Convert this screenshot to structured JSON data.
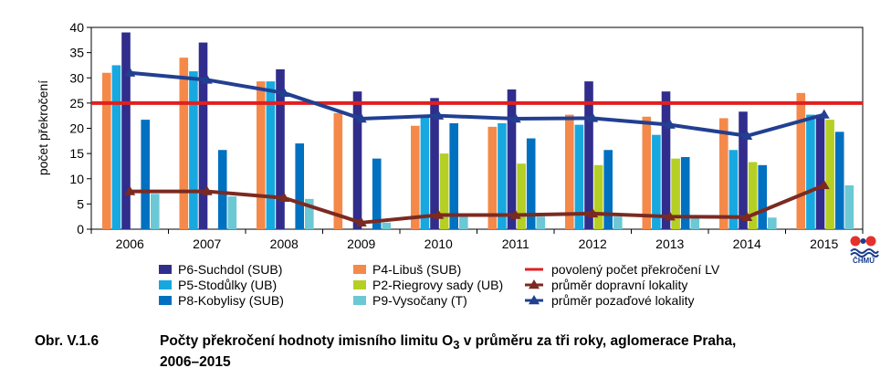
{
  "chart_data": {
    "type": "bar",
    "ylabel": "počet překročení",
    "xlabel": "",
    "ylim": [
      0,
      40
    ],
    "yticks": [
      "0",
      "5",
      "10",
      "15",
      "20",
      "25",
      "30",
      "35",
      "40"
    ],
    "categories": [
      "2006",
      "2007",
      "2008",
      "2009",
      "2010",
      "2011",
      "2012",
      "2013",
      "2014",
      "2015"
    ],
    "series": [
      {
        "name": "P4-Libuš (SUB)",
        "color": "#f4894a",
        "values": [
          31,
          34,
          29.3,
          23,
          20.5,
          20.3,
          22.7,
          22.3,
          22,
          27
        ]
      },
      {
        "name": "P5-Stodůlky (UB)",
        "color": "#17a8e0",
        "values": [
          32.5,
          31.3,
          29.3,
          null,
          22.7,
          21,
          20.7,
          18.7,
          15.7,
          22.7
        ]
      },
      {
        "name": "P6-Suchdol (SUB)",
        "color": "#312d8c",
        "values": [
          39,
          37,
          31.7,
          27.3,
          26,
          27.7,
          29.3,
          27.3,
          23.3,
          22.7
        ]
      },
      {
        "name": "P2-Riegrovy sady (UB)",
        "color": "#b5cf25",
        "values": [
          null,
          null,
          null,
          null,
          15,
          13,
          12.7,
          14,
          13.3,
          21.7
        ]
      },
      {
        "name": "P8-Kobylisy (SUB)",
        "color": "#0070c0",
        "values": [
          21.7,
          15.7,
          17,
          14,
          21,
          18,
          15.7,
          14.3,
          12.7,
          19.3
        ]
      },
      {
        "name": "P9-Vysočany (T)",
        "color": "#6cc8d4",
        "values": [
          7,
          6.5,
          6,
          1.3,
          2.7,
          2.5,
          2.5,
          2.3,
          2.3,
          8.7
        ]
      }
    ],
    "lines": [
      {
        "name": "povolený počet překročení LV",
        "color": "#e02020",
        "values": [
          25,
          25,
          25,
          25,
          25,
          25,
          25,
          25,
          25,
          25
        ],
        "marker": "none"
      },
      {
        "name": "průměr dopravní lokality",
        "color": "#7b2a22",
        "values": [
          7.5,
          7.5,
          6.2,
          1.3,
          2.8,
          2.8,
          3.1,
          2.5,
          2.4,
          8.7
        ],
        "marker": "triangle"
      },
      {
        "name": "průměr pozaďové lokality",
        "color": "#223f91",
        "values": [
          31,
          29.6,
          27,
          21.9,
          22.5,
          21.9,
          22,
          20.7,
          18.5,
          22.7
        ],
        "marker": "triangle"
      }
    ],
    "legend": {
      "placement": "bottom",
      "columns": [
        [
          "P6-Suchdol (SUB)",
          "P5-Stodůlky (UB)",
          "P8-Kobylisy (SUB)"
        ],
        [
          "P4-Libuš (SUB)",
          "P2-Riegrovy sady (UB)",
          "P9-Vysočany (T)"
        ],
        [
          "povolený počet překročení LV",
          "průměr dopravní lokality",
          "průměr pozaďové lokality"
        ]
      ]
    },
    "grid": false
  },
  "caption": {
    "lead": "Obr. V.1.6",
    "text_before_sub": "Počty překročení hodnoty imisního limitu O",
    "subscript": "3",
    "text_after_sub": " v průměru za tři roky, aglomerace Praha,",
    "line2": "2006–2015"
  },
  "logo": {
    "text": "ČHMÚ",
    "colors": [
      "#e4312b",
      "#1a3d8c"
    ]
  }
}
